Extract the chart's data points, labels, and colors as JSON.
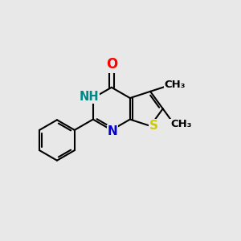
{
  "background_color": "#e8e8e8",
  "bond_color": "#000000",
  "atom_colors": {
    "N": "#0000cc",
    "O": "#ff0000",
    "S": "#cccc00",
    "NH": "#008888",
    "C": "#000000"
  },
  "bond_width": 1.5,
  "font_size_atoms": 11,
  "font_size_methyl": 9.5,
  "figsize": [
    3.0,
    3.0
  ],
  "dpi": 100,
  "xlim": [
    0.0,
    1.0
  ],
  "ylim": [
    0.0,
    1.0
  ]
}
